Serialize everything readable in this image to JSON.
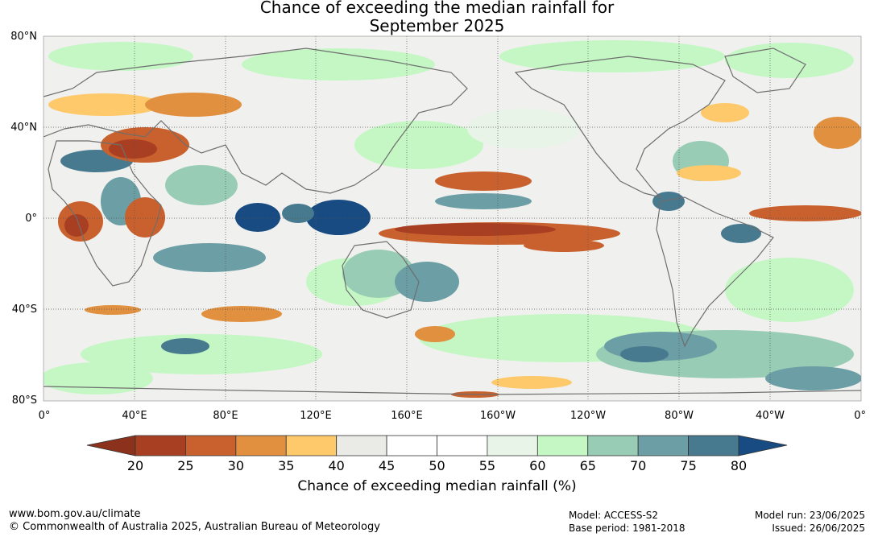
{
  "title_line1": "Chance of exceeding the median rainfall for",
  "title_line2": "September 2025",
  "lat_labels": [
    "80°N",
    "40°N",
    "0°",
    "40°S",
    "80°S"
  ],
  "lon_labels": [
    "0°",
    "40°E",
    "80°E",
    "120°E",
    "160°E",
    "160°W",
    "120°W",
    "80°W",
    "40°W",
    "0°"
  ],
  "colorbar": {
    "ticks": [
      "20",
      "25",
      "30",
      "35",
      "40",
      "45",
      "50",
      "55",
      "60",
      "65",
      "70",
      "75",
      "80"
    ],
    "colors": [
      "#a93f22",
      "#c9612f",
      "#e0903f",
      "#fdc96a",
      "#eaeae6",
      "#ffffff",
      "#ffffff",
      "#e8f4e8",
      "#c4f7c4",
      "#98ccb5",
      "#6c9ea5",
      "#47798f"
    ],
    "under_color": "#8c321c",
    "over_color": "#174b82",
    "title": "Chance of exceeding median rainfall (%)"
  },
  "footer": {
    "url": "www.bom.gov.au/climate",
    "copyright": "© Commonwealth of Australia 2025, Australian Bureau of Meteorology",
    "model": "Model: ACCESS-S2",
    "base_period": "Base period: 1981-2018",
    "model_run": "Model run: 23/06/2025",
    "issued": "Issued: 26/06/2025"
  }
}
